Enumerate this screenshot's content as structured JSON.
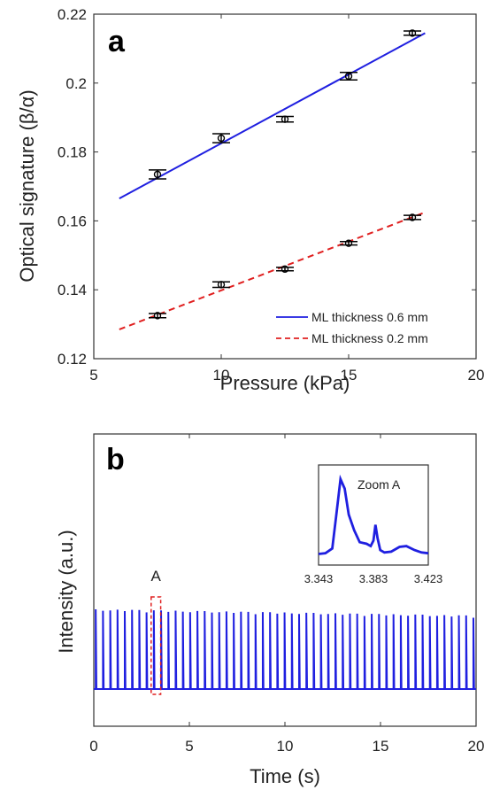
{
  "chart_data": [
    {
      "type": "line",
      "panel_label": "a",
      "xlabel": "Pressure (kPa)",
      "ylabel": "Optical signature (β/α)",
      "xlim": [
        5,
        20
      ],
      "ylim": [
        0.12,
        0.22
      ],
      "x_ticks": [
        "5",
        "10",
        "15",
        "20"
      ],
      "y_ticks": [
        "0.12",
        "0.14",
        "0.16",
        "0.18",
        "0.2",
        "0.22"
      ],
      "grid": false,
      "legend_position": "bottom-right",
      "series": [
        {
          "name": "ML thickness 0.6 mm",
          "color": "#1f1fe0",
          "style": "solid",
          "points": [
            {
              "x": 7.5,
              "y": 0.1735,
              "err": 0.0013
            },
            {
              "x": 10,
              "y": 0.184,
              "err": 0.0013
            },
            {
              "x": 12.5,
              "y": 0.1895,
              "err": 0.0008
            },
            {
              "x": 15,
              "y": 0.202,
              "err": 0.0011
            },
            {
              "x": 17.5,
              "y": 0.2145,
              "err": 0.0006
            }
          ],
          "fit": {
            "x": [
              6,
              18
            ],
            "y": [
              0.1665,
              0.2145
            ]
          }
        },
        {
          "name": "ML thickness 0.2 mm",
          "color": "#e02020",
          "style": "dashed",
          "points": [
            {
              "x": 7.5,
              "y": 0.1325,
              "err": 0.0006
            },
            {
              "x": 10,
              "y": 0.1415,
              "err": 0.0008
            },
            {
              "x": 12.5,
              "y": 0.146,
              "err": 0.0005
            },
            {
              "x": 15,
              "y": 0.1535,
              "err": 0.0005
            },
            {
              "x": 17.5,
              "y": 0.161,
              "err": 0.0006
            }
          ],
          "fit": {
            "x": [
              6,
              18
            ],
            "y": [
              0.1285,
              0.1625
            ]
          }
        }
      ]
    },
    {
      "type": "line",
      "panel_label": "b",
      "xlabel": "Time (s)",
      "ylabel": "Intensity (a.u.)",
      "xlim": [
        0,
        20
      ],
      "x_ticks": [
        "0",
        "5",
        "10",
        "15",
        "20"
      ],
      "grid": false,
      "series": [
        {
          "color": "#1f1fe0",
          "pulse_train": {
            "start_s": 0.1,
            "end_s": 20.0,
            "period_s": 0.38,
            "baseline": 0.1,
            "peak_start": 1.0,
            "peak_end": 0.93
          }
        }
      ],
      "annotation": {
        "label": "A",
        "x_range_s": [
          3.0,
          3.5
        ],
        "color": "#e02020",
        "style": "dashed box"
      },
      "inset": {
        "title": "Zoom A",
        "x_ticks": [
          "3.343",
          "3.383",
          "3.423"
        ],
        "xlim": [
          3.343,
          3.423
        ],
        "trace": {
          "x": [
            3.343,
            3.348,
            3.353,
            3.356,
            3.359,
            3.362,
            3.365,
            3.369,
            3.373,
            3.378,
            3.381,
            3.383,
            3.3845,
            3.386,
            3.388,
            3.391,
            3.396,
            3.402,
            3.407,
            3.413,
            3.418,
            3.423
          ],
          "y": [
            0.05,
            0.06,
            0.12,
            0.55,
            1.0,
            0.88,
            0.55,
            0.35,
            0.2,
            0.18,
            0.15,
            0.22,
            0.42,
            0.25,
            0.1,
            0.07,
            0.08,
            0.14,
            0.15,
            0.1,
            0.07,
            0.06
          ]
        }
      }
    }
  ]
}
